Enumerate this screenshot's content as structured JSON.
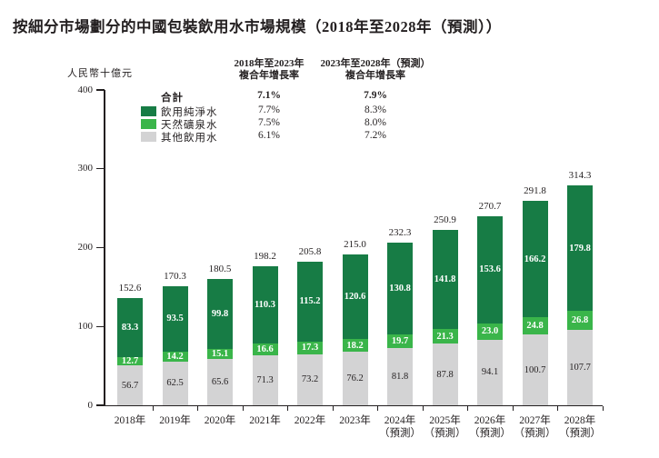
{
  "title": "按細分市場劃分的中國包裝飲用水市場規模（2018年至2028年（預測））",
  "y_axis": {
    "unit_label": "人民幣十億元",
    "ticks": [
      0,
      100,
      200,
      300,
      400
    ]
  },
  "legend": {
    "col1_header_line1": "2018年至2023年",
    "col1_header_line2": "複合年增長率",
    "col2_header_line1": "2023年至2028年（預測）",
    "col2_header_line2": "複合年增長率",
    "rows": [
      {
        "label": "合計",
        "cagr_2018_2023": "7.1%",
        "cagr_2023_2028": "7.9%"
      },
      {
        "label": "飲用純淨水",
        "cagr_2018_2023": "7.7%",
        "cagr_2023_2028": "8.3%"
      },
      {
        "label": "天然礦泉水",
        "cagr_2018_2023": "7.5%",
        "cagr_2023_2028": "8.0%"
      },
      {
        "label": "其他飲用水",
        "cagr_2018_2023": "6.1%",
        "cagr_2023_2028": "7.2%"
      }
    ]
  },
  "chart_data": {
    "type": "bar",
    "stacked": true,
    "title": "按細分市場劃分的中國包裝飲用水市場規模（2018年至2028年（預測））",
    "ylabel": "人民幣十億元",
    "ylim": [
      0,
      400
    ],
    "grid": false,
    "categories": [
      {
        "year": "2018年",
        "note": ""
      },
      {
        "year": "2019年",
        "note": ""
      },
      {
        "year": "2020年",
        "note": ""
      },
      {
        "year": "2021年",
        "note": ""
      },
      {
        "year": "2022年",
        "note": ""
      },
      {
        "year": "2023年",
        "note": ""
      },
      {
        "year": "2024年",
        "note": "（預測）"
      },
      {
        "year": "2025年",
        "note": "（預測）"
      },
      {
        "year": "2026年",
        "note": "（預測）"
      },
      {
        "year": "2027年",
        "note": "（預測）"
      },
      {
        "year": "2028年",
        "note": "（預測）"
      }
    ],
    "series": [
      {
        "name": "其他飲用水",
        "color": "#d3d3d4",
        "label_color": "#231f20",
        "label_bold": false,
        "values": [
          56.7,
          62.5,
          65.6,
          71.3,
          73.2,
          76.2,
          81.8,
          87.8,
          94.1,
          100.7,
          107.7
        ]
      },
      {
        "name": "天然礦泉水",
        "color": "#3ab54a",
        "label_color": "#ffffff",
        "label_bold": true,
        "values": [
          12.7,
          14.2,
          15.1,
          16.6,
          17.3,
          18.2,
          19.7,
          21.3,
          23.0,
          24.8,
          26.8
        ]
      },
      {
        "name": "飲用純淨水",
        "color": "#177c45",
        "label_color": "#ffffff",
        "label_bold": true,
        "values": [
          83.3,
          93.5,
          99.8,
          110.3,
          115.2,
          120.6,
          130.8,
          141.8,
          153.6,
          166.2,
          179.8
        ]
      }
    ],
    "totals": [
      152.6,
      170.3,
      180.5,
      198.2,
      205.8,
      215.0,
      232.3,
      250.9,
      270.7,
      291.8,
      314.3
    ]
  }
}
